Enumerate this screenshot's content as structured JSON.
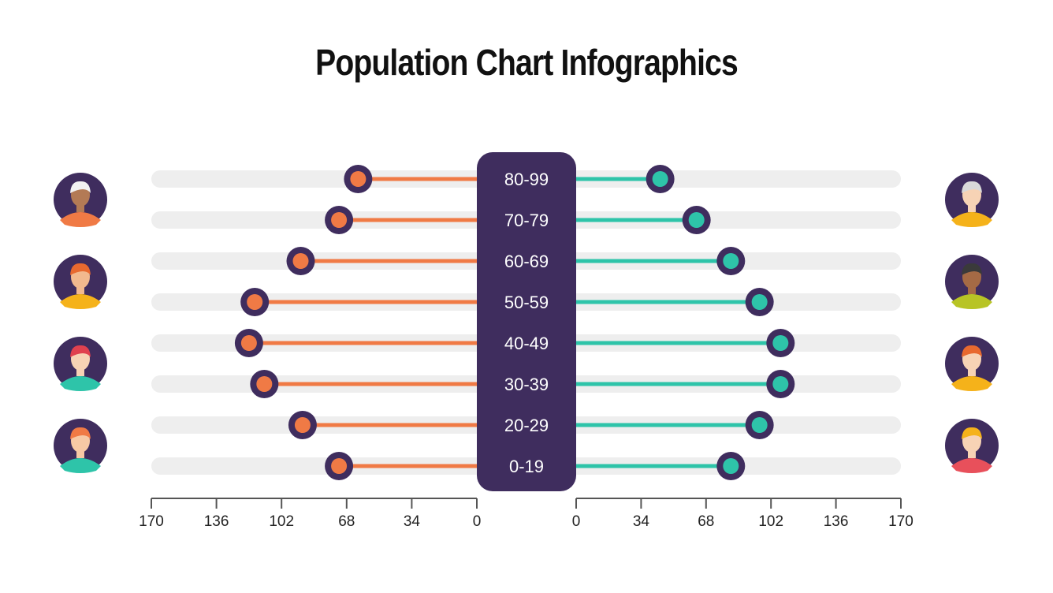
{
  "chart_data": {
    "type": "bar",
    "title": "Population Chart Infographics",
    "categories": [
      "80-99",
      "70-79",
      "60-69",
      "50-59",
      "40-49",
      "30-39",
      "20-29",
      "0-19"
    ],
    "series": [
      {
        "side": "left",
        "color": "#f07a45",
        "values": [
          62,
          72,
          92,
          116,
          119,
          111,
          91,
          72
        ]
      },
      {
        "side": "right",
        "color": "#2ec4a9",
        "values": [
          44,
          63,
          81,
          96,
          107,
          107,
          96,
          81
        ]
      }
    ],
    "left_axis": {
      "range": [
        170,
        0
      ],
      "ticks": [
        "170",
        "136",
        "102",
        "68",
        "34",
        "0"
      ]
    },
    "right_axis": {
      "range": [
        0,
        170
      ],
      "ticks": [
        "0",
        "34",
        "68",
        "102",
        "136",
        "170"
      ]
    },
    "grid": false,
    "colors": {
      "panel": "#3f2d5e",
      "track": "#eeeeee",
      "male": "#f07a45",
      "female": "#2ec4a9"
    },
    "icons": {
      "left": [
        "elderly-man-avatar-icon",
        "man-avatar-icon",
        "boy-cap-avatar-icon",
        "child-avatar-icon"
      ],
      "right": [
        "elderly-woman-avatar-icon",
        "woman-avatar-icon",
        "young-woman-avatar-icon",
        "girl-avatar-icon"
      ]
    }
  }
}
